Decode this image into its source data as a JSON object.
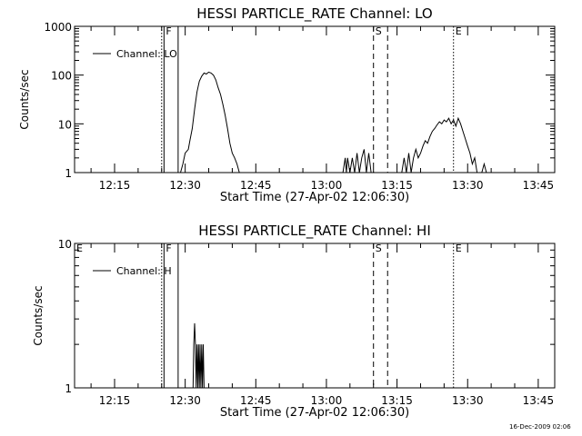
{
  "footer": {
    "timestamp": "16-Dec-2009 02:06"
  },
  "chart_data": [
    {
      "type": "line",
      "title": "HESSI PARTICLE_RATE Channel: LO",
      "xlabel": "Start Time (27-Apr-02 12:06:30)",
      "ylabel": "Counts/sec",
      "yscale": "log",
      "ylim": [
        1,
        1000
      ],
      "xlim": [
        "12:06:30",
        "13:48:30"
      ],
      "yticks": [
        {
          "value": 1,
          "label": "1"
        },
        {
          "value": 10,
          "label": "10"
        },
        {
          "value": 100,
          "label": "100"
        },
        {
          "value": 1000,
          "label": "1000"
        }
      ],
      "xticks": [
        "12:15",
        "12:30",
        "12:45",
        "13:00",
        "13:15",
        "13:30",
        "13:45"
      ],
      "legend": {
        "label": "Channel: LO",
        "placement": "top-left"
      },
      "event_lines": [
        {
          "time": "12:25:00",
          "style": "dotted",
          "label": ""
        },
        {
          "time": "12:25:30",
          "style": "solid",
          "label": "F"
        },
        {
          "time": "12:28:30",
          "style": "solid",
          "label": ""
        },
        {
          "time": "13:10:00",
          "style": "dashed",
          "label": "S"
        },
        {
          "time": "13:13:00",
          "style": "dashed",
          "label": ""
        },
        {
          "time": "13:27:00",
          "style": "dotted",
          "label": "E"
        },
        {
          "time": "13:48:30",
          "style": "dotted",
          "label": ""
        }
      ],
      "grid": false,
      "series": [
        {
          "segments": [
            [
              [
                "12:29:00",
                1.0
              ],
              [
                "12:29:30",
                1.5
              ],
              [
                "12:30:00",
                2.5
              ],
              [
                "12:30:40",
                3.0
              ],
              [
                "12:31:00",
                4.5
              ],
              [
                "12:31:30",
                8
              ],
              [
                "12:32:00",
                20
              ],
              [
                "12:32:30",
                45
              ],
              [
                "12:33:00",
                75
              ],
              [
                "12:33:30",
                95
              ],
              [
                "12:34:00",
                110
              ],
              [
                "12:34:30",
                105
              ],
              [
                "12:35:00",
                115
              ],
              [
                "12:35:30",
                110
              ],
              [
                "12:36:00",
                100
              ],
              [
                "12:36:30",
                80
              ],
              [
                "12:37:00",
                55
              ],
              [
                "12:37:30",
                40
              ],
              [
                "12:38:00",
                25
              ],
              [
                "12:38:30",
                15
              ],
              [
                "12:39:00",
                8
              ],
              [
                "12:39:30",
                4
              ],
              [
                "12:40:00",
                2.5
              ],
              [
                "12:40:30",
                2
              ],
              [
                "12:41:00",
                1.5
              ],
              [
                "12:41:30",
                1.0
              ]
            ],
            [
              [
                "13:03:30",
                1.0
              ],
              [
                "13:04:00",
                2.0
              ],
              [
                "13:04:15",
                1.0
              ],
              [
                "13:04:30",
                2.0
              ],
              [
                "13:05:00",
                1.0
              ],
              [
                "13:05:30",
                2.0
              ],
              [
                "13:06:00",
                1.0
              ],
              [
                "13:06:30",
                2.5
              ],
              [
                "13:07:00",
                1.0
              ],
              [
                "13:07:30",
                2.0
              ],
              [
                "13:08:00",
                3.0
              ],
              [
                "13:08:30",
                1.0
              ],
              [
                "13:09:00",
                2.5
              ],
              [
                "13:09:30",
                1.0
              ]
            ],
            [
              [
                "13:16:00",
                1.0
              ],
              [
                "13:16:30",
                2.0
              ],
              [
                "13:17:00",
                1.0
              ],
              [
                "13:17:30",
                2.5
              ],
              [
                "13:18:00",
                1.0
              ],
              [
                "13:18:30",
                2.0
              ],
              [
                "13:19:00",
                3.0
              ],
              [
                "13:19:30",
                2.0
              ],
              [
                "13:20:00",
                2.5
              ],
              [
                "13:20:30",
                3.5
              ],
              [
                "13:21:00",
                4.5
              ],
              [
                "13:21:30",
                4.0
              ],
              [
                "13:22:00",
                5.5
              ],
              [
                "13:22:30",
                7
              ],
              [
                "13:23:00",
                8
              ],
              [
                "13:23:30",
                9.5
              ],
              [
                "13:24:00",
                11
              ],
              [
                "13:24:30",
                10
              ],
              [
                "13:25:00",
                12
              ],
              [
                "13:25:30",
                11
              ],
              [
                "13:26:00",
                13
              ],
              [
                "13:26:30",
                10
              ],
              [
                "13:27:00",
                12
              ],
              [
                "13:27:30",
                9
              ],
              [
                "13:28:00",
                13
              ],
              [
                "13:28:30",
                10
              ],
              [
                "13:29:00",
                7
              ],
              [
                "13:29:30",
                5
              ],
              [
                "13:30:00",
                3.5
              ],
              [
                "13:30:30",
                2.5
              ],
              [
                "13:31:00",
                1.5
              ],
              [
                "13:31:30",
                2.0
              ],
              [
                "13:32:00",
                1.0
              ],
              [
                "13:33:00",
                1.0
              ],
              [
                "13:33:30",
                1.5
              ],
              [
                "13:34:00",
                1.0
              ]
            ]
          ]
        }
      ]
    },
    {
      "type": "line",
      "title": "HESSI PARTICLE_RATE Channel: HI",
      "xlabel": "Start Time (27-Apr-02 12:06:30)",
      "ylabel": "Counts/sec",
      "yscale": "log",
      "ylim": [
        1,
        10
      ],
      "xlim": [
        "12:06:30",
        "13:48:30"
      ],
      "yticks": [
        {
          "value": 1,
          "label": "1"
        },
        {
          "value": 10,
          "label": "10"
        }
      ],
      "xticks": [
        "12:15",
        "12:30",
        "12:45",
        "13:00",
        "13:15",
        "13:30",
        "13:45"
      ],
      "legend": {
        "label": "Channel: H",
        "placement": "top-left"
      },
      "event_lines": [
        {
          "time": "12:06:30",
          "style": "none",
          "label": "E"
        },
        {
          "time": "12:25:00",
          "style": "dotted",
          "label": ""
        },
        {
          "time": "12:25:30",
          "style": "solid",
          "label": "F"
        },
        {
          "time": "12:28:30",
          "style": "solid",
          "label": ""
        },
        {
          "time": "13:10:00",
          "style": "dashed",
          "label": "S"
        },
        {
          "time": "13:13:00",
          "style": "dashed",
          "label": ""
        },
        {
          "time": "13:27:00",
          "style": "dotted",
          "label": "E"
        },
        {
          "time": "13:48:30",
          "style": "dotted",
          "label": ""
        }
      ],
      "grid": false,
      "series": [
        {
          "segments": [
            [
              [
                "12:31:40",
                1.0
              ],
              [
                "12:31:50",
                2.0
              ],
              [
                "12:32:00",
                2.8
              ],
              [
                "12:32:10",
                2.0
              ],
              [
                "12:32:20",
                1.0
              ],
              [
                "12:32:30",
                2.0
              ],
              [
                "12:32:40",
                1.0
              ],
              [
                "12:32:50",
                2.0
              ],
              [
                "12:33:00",
                1.0
              ],
              [
                "12:33:10",
                2.0
              ],
              [
                "12:33:20",
                1.0
              ],
              [
                "12:33:30",
                2.0
              ],
              [
                "12:33:40",
                1.0
              ],
              [
                "12:33:50",
                2.0
              ],
              [
                "12:34:00",
                1.0
              ]
            ]
          ]
        }
      ]
    }
  ]
}
